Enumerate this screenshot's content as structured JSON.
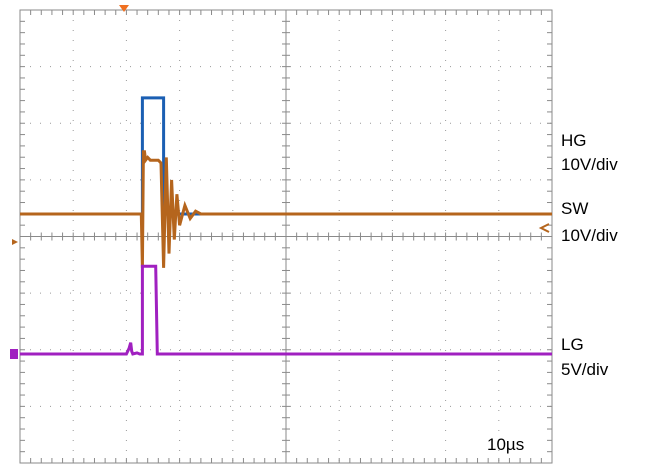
{
  "chart_data": {
    "type": "line",
    "title": "",
    "grid": true,
    "x_divisions": 10,
    "y_divisions": 8,
    "timebase_label": "10µs",
    "channels": [
      {
        "name": "HG",
        "scale_label": "10V/div",
        "color": "#1b5fb3"
      },
      {
        "name": "SW",
        "scale_label": "10V/div",
        "color": "#b5651d"
      },
      {
        "name": "LG",
        "scale_label": "5V/div",
        "color": "#a020c0"
      }
    ],
    "series": [
      {
        "name": "HG",
        "x": [
          0,
          2.2,
          2.28,
          2.3,
          2.3,
          2.7,
          2.7,
          2.8,
          10
        ],
        "y": [
          0,
          0,
          0,
          0,
          2.05,
          2.05,
          0,
          0,
          0
        ]
      },
      {
        "name": "SW",
        "x": [
          0,
          2.2,
          2.28,
          2.3,
          2.32,
          2.34,
          2.36,
          2.4,
          2.45,
          2.5,
          2.55,
          2.6,
          2.65,
          2.7,
          2.75,
          2.8,
          2.85,
          2.9,
          2.95,
          3.0,
          3.1,
          3.2,
          3.3,
          3.4,
          10
        ],
        "y": [
          0,
          0,
          0,
          -0.95,
          1.1,
          1.1,
          0.95,
          1.0,
          0.95,
          0.95,
          0.95,
          0.95,
          0.9,
          -0.95,
          1.0,
          -0.7,
          0.6,
          -0.45,
          0.35,
          -0.2,
          0.15,
          -0.08,
          0.05,
          0,
          0
        ]
      },
      {
        "name": "LG",
        "x": [
          0,
          2.0,
          2.05,
          2.08,
          2.1,
          2.12,
          2.2,
          2.25,
          2.3,
          2.3,
          2.55,
          2.58,
          10
        ],
        "y": [
          0,
          0,
          0.1,
          0.2,
          0.05,
          0,
          0.02,
          0,
          0,
          1.55,
          1.55,
          0,
          0
        ]
      }
    ]
  }
}
